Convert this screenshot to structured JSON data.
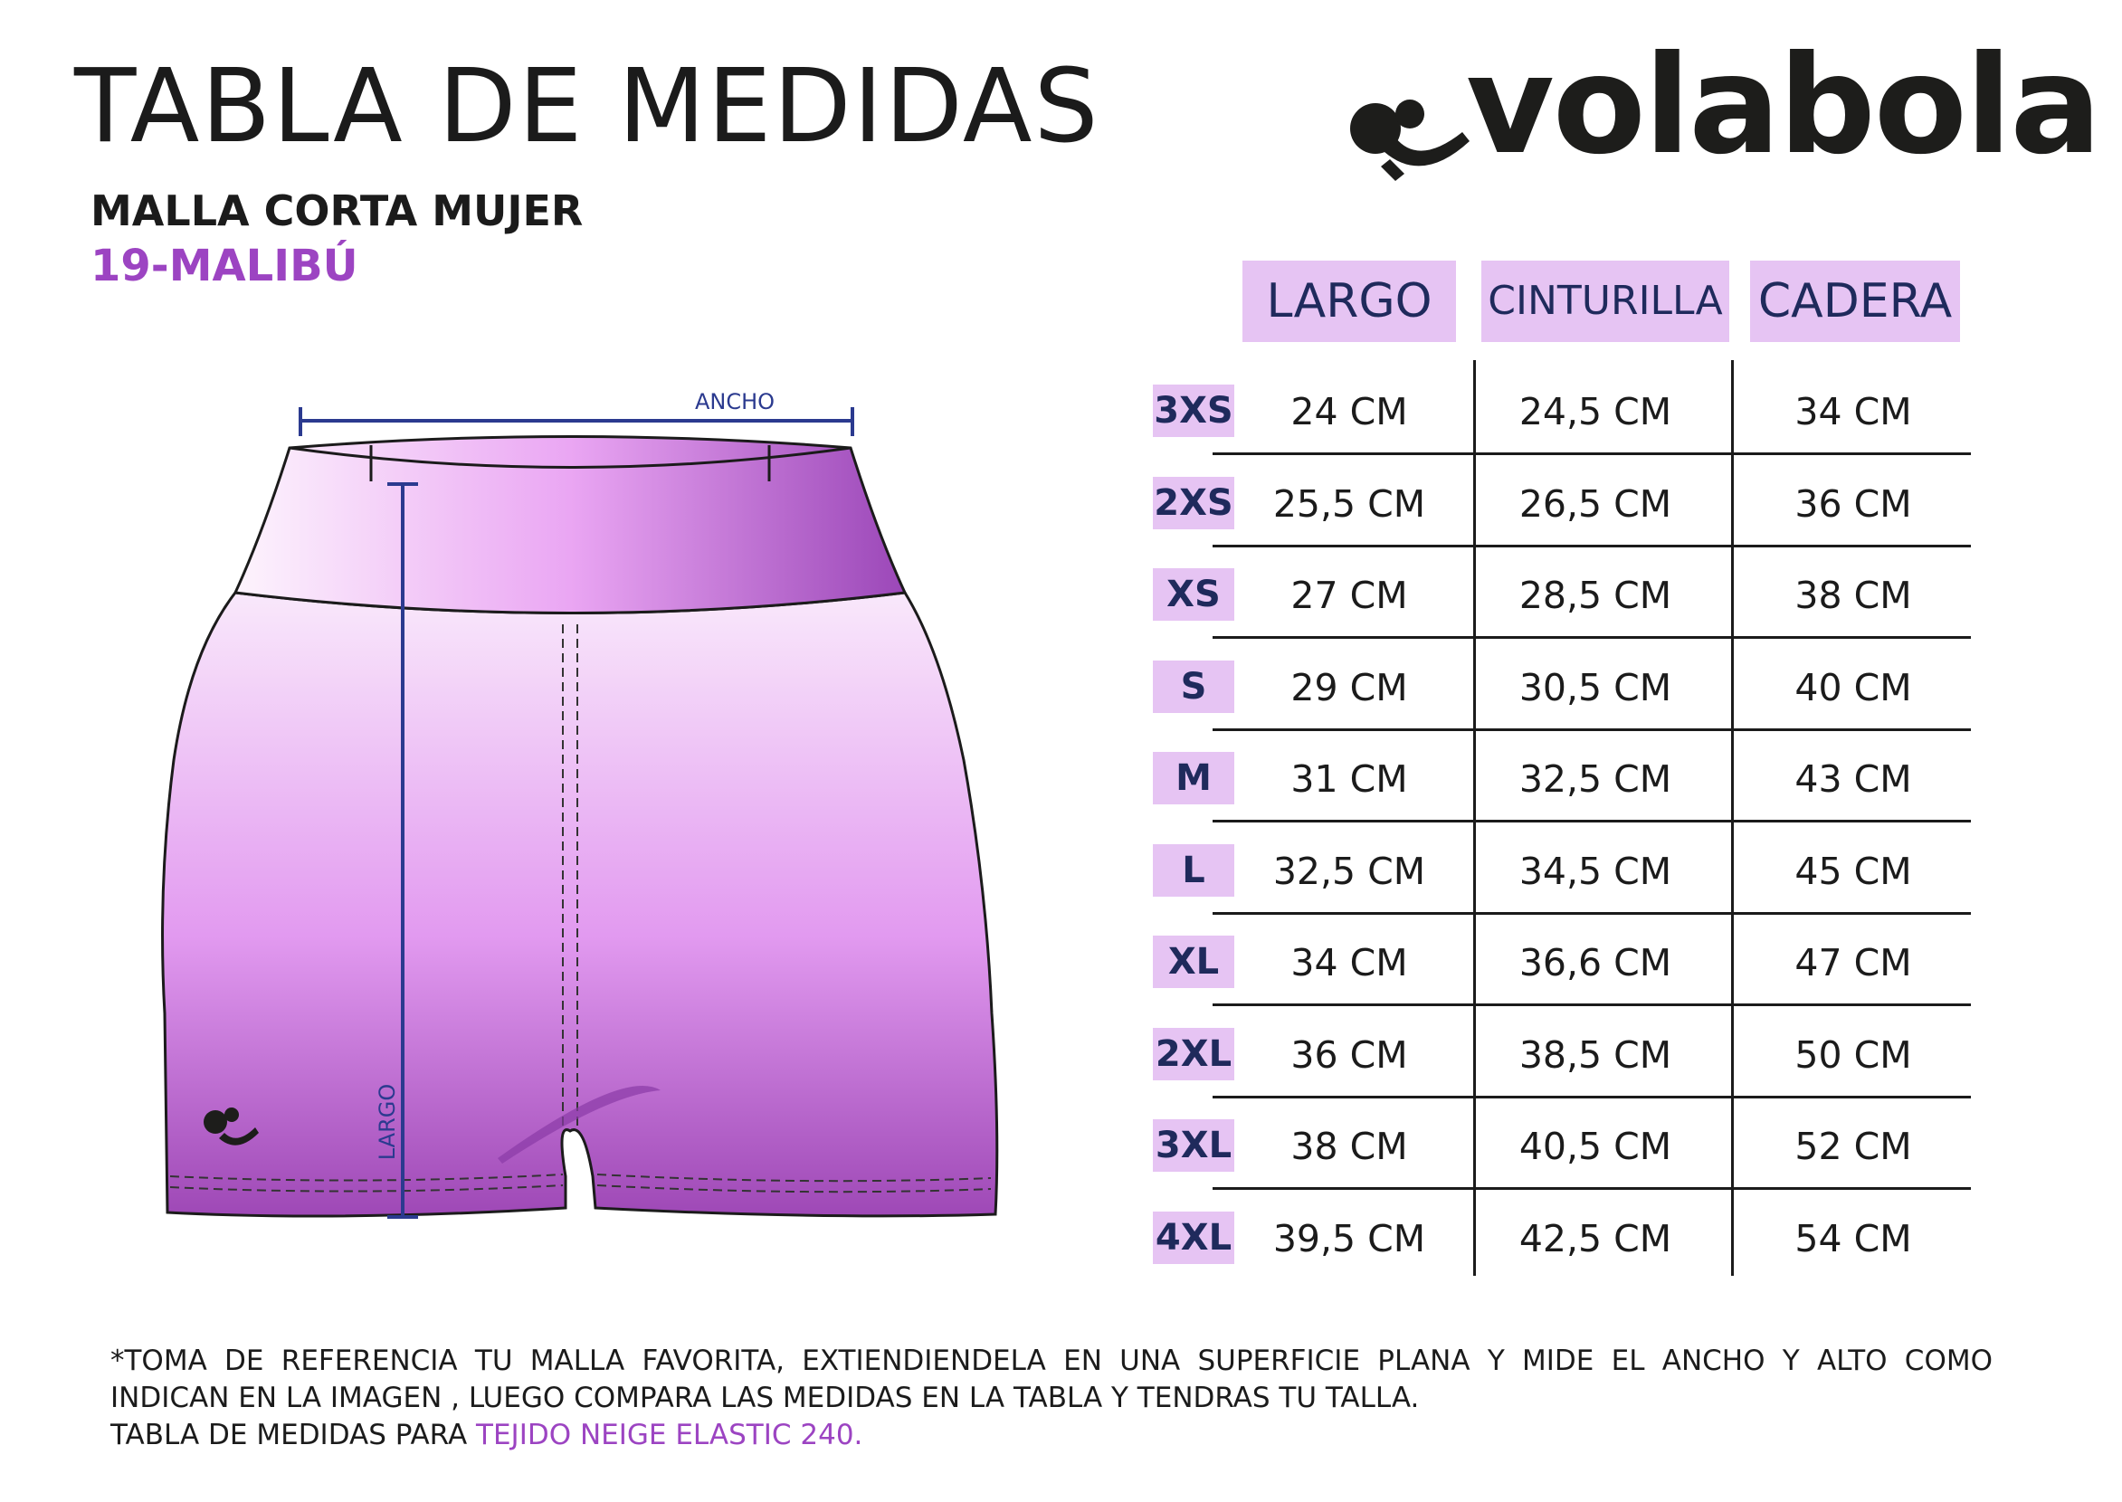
{
  "title": "TABLA DE MEDIDAS",
  "subtitle": "MALLA CORTA MUJER",
  "model": "19-MALIBÚ",
  "brand": "volabola",
  "diagram": {
    "width_label": "ANCHO",
    "length_label": "LARGO"
  },
  "table": {
    "headers": [
      "LARGO",
      "CINTURILLA",
      "CADERA"
    ],
    "rows": [
      {
        "size": "3XS",
        "largo": "24 CM",
        "cinturilla": "24,5 CM",
        "cadera": "34 CM"
      },
      {
        "size": "2XS",
        "largo": "25,5 CM",
        "cinturilla": "26,5 CM",
        "cadera": "36 CM"
      },
      {
        "size": "XS",
        "largo": "27 CM",
        "cinturilla": "28,5 CM",
        "cadera": "38 CM"
      },
      {
        "size": "S",
        "largo": "29 CM",
        "cinturilla": "30,5 CM",
        "cadera": "40 CM"
      },
      {
        "size": "M",
        "largo": "31 CM",
        "cinturilla": "32,5 CM",
        "cadera": "43 CM"
      },
      {
        "size": "L",
        "largo": "32,5 CM",
        "cinturilla": "34,5 CM",
        "cadera": "45 CM"
      },
      {
        "size": "XL",
        "largo": "34 CM",
        "cinturilla": "36,6 CM",
        "cadera": "47 CM"
      },
      {
        "size": "2XL",
        "largo": "36 CM",
        "cinturilla": "38,5 CM",
        "cadera": "50 CM"
      },
      {
        "size": "3XL",
        "largo": "38 CM",
        "cinturilla": "40,5 CM",
        "cadera": "52 CM"
      },
      {
        "size": "4XL",
        "largo": "39,5 CM",
        "cinturilla": "42,5 CM",
        "cadera": "54 CM"
      }
    ]
  },
  "footnote": {
    "line1": "*TOMA DE REFERENCIA TU MALLA FAVORITA, EXTIENDIENDELA EN UNA SUPERFICIE PLANA Y MIDE EL ANCHO Y ALTO COMO",
    "line2": "INDICAN EN LA IMAGEN , LUEGO COMPARA LAS MEDIDAS  EN LA TABLA Y TENDRAS TU TALLA.",
    "line3_prefix": "TABLA DE MEDIDAS PARA ",
    "line3_fabric": "TEJIDO NEIGE ELASTIC 240."
  },
  "colors": {
    "accent": "#9c44c2",
    "header_bg": "#e6c4f3",
    "header_text": "#1f2a5c",
    "measure_line": "#2b3a8f"
  }
}
